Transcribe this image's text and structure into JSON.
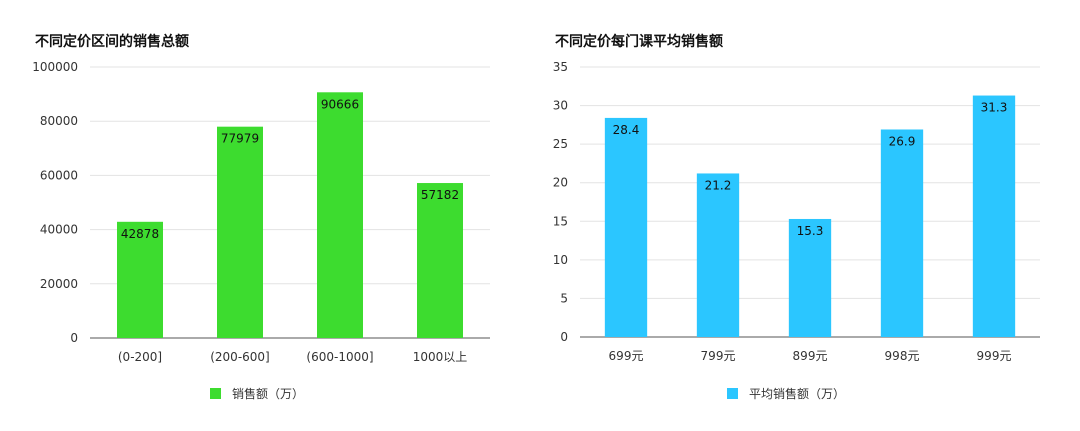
{
  "chart_data": [
    {
      "type": "bar",
      "title": "不同定价区间的销售总额",
      "categories": [
        "(0-200]",
        "(200-600]",
        "(600-1000]",
        "1000以上"
      ],
      "series": [
        {
          "name": "销售额（万）",
          "values": [
            42878,
            77979,
            90666,
            57182
          ],
          "color": "#3ddc2f"
        }
      ],
      "ylim": [
        0,
        100000
      ],
      "yticks": [
        0,
        20000,
        40000,
        60000,
        80000,
        100000
      ],
      "grid": true,
      "legend": "bottom"
    },
    {
      "type": "bar",
      "title": "不同定价每门课平均销售额",
      "categories": [
        "699元",
        "799元",
        "899元",
        "998元",
        "999元"
      ],
      "series": [
        {
          "name": "平均销售额（万）",
          "values": [
            28.4,
            21.2,
            15.3,
            26.9,
            31.3
          ],
          "color": "#2bc6ff"
        }
      ],
      "ylim": [
        0,
        35
      ],
      "yticks": [
        0,
        5,
        10,
        15,
        20,
        25,
        30,
        35
      ],
      "grid": true,
      "legend": "bottom"
    }
  ]
}
